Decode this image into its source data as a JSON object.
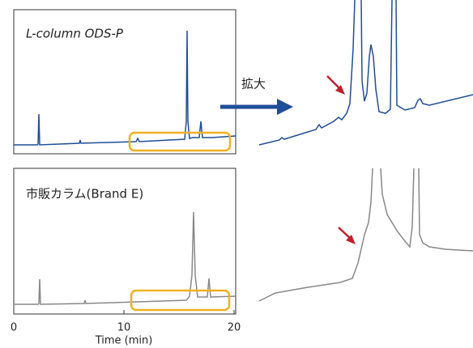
{
  "panels": [
    {
      "label": "L-column ODS-P"
    },
    {
      "label": "市販カラム(Brand E)"
    }
  ],
  "arrow_label": "拡大",
  "x_axis": {
    "label": "Time (min)",
    "xlim": [
      0,
      20
    ],
    "xticks": [
      0,
      10,
      20
    ]
  }
}
